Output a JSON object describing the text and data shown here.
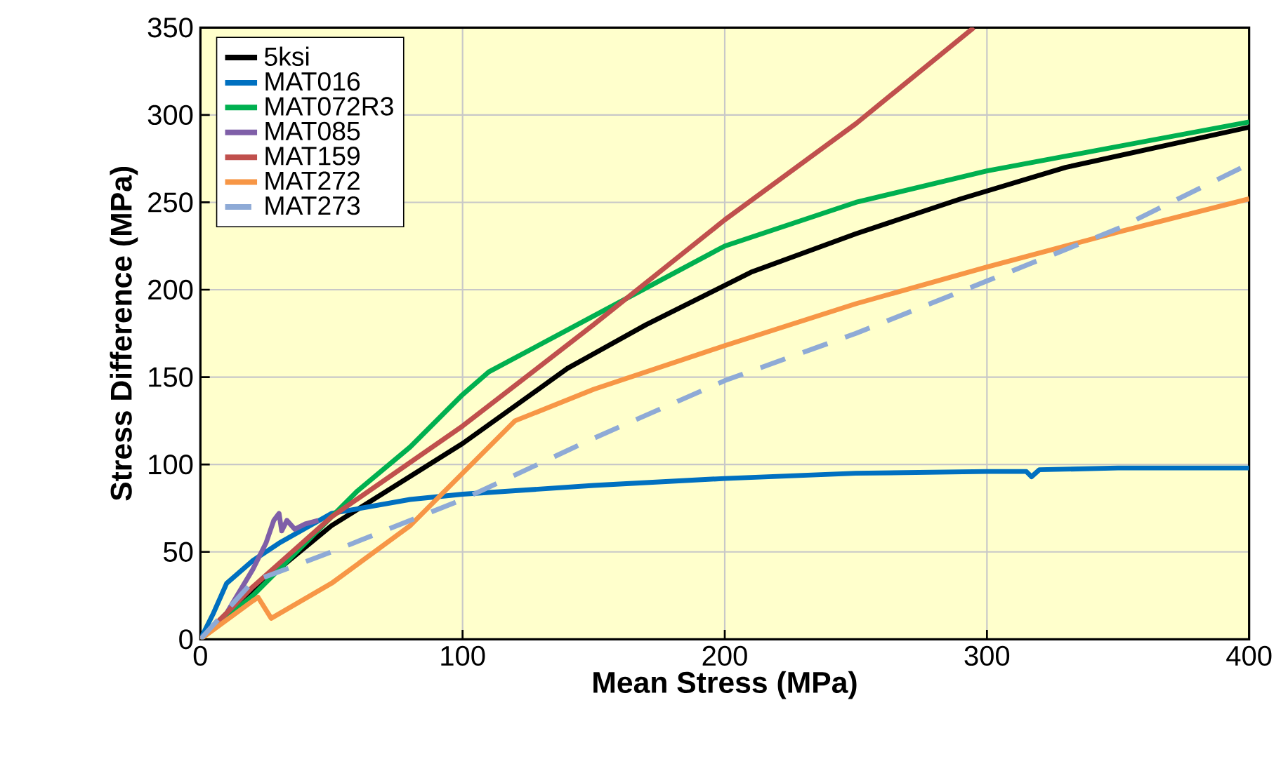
{
  "chart_data": {
    "type": "line",
    "xlabel": "Mean Stress (MPa)",
    "ylabel": "Stress Difference (MPa)",
    "xlim": [
      0,
      400
    ],
    "ylim": [
      0,
      350
    ],
    "xticks": [
      0,
      100,
      200,
      300,
      400
    ],
    "yticks": [
      0,
      50,
      100,
      150,
      200,
      250,
      300,
      350
    ],
    "grid": true,
    "legend": "top left",
    "line_style": "solid",
    "series": [
      {
        "name": "5ksi",
        "color": "#000000",
        "x": [
          0,
          20,
          50,
          100,
          140,
          170,
          210,
          250,
          290,
          330,
          400
        ],
        "values": [
          0,
          28,
          65,
          112,
          155,
          180,
          210,
          232,
          252,
          270,
          293
        ]
      },
      {
        "name": "MAT016",
        "color": "#0070c0",
        "x": [
          0,
          5,
          10,
          20,
          30,
          50,
          80,
          100,
          150,
          200,
          250,
          300,
          315,
          317,
          320,
          350,
          400
        ],
        "values": [
          0,
          15,
          32,
          45,
          55,
          72,
          80,
          83,
          88,
          92,
          95,
          96,
          96,
          93,
          97,
          98,
          98
        ]
      },
      {
        "name": "MAT072R3",
        "color": "#00b050",
        "x": [
          0,
          20,
          40,
          60,
          80,
          100,
          110,
          150,
          200,
          250,
          300,
          350,
          400
        ],
        "values": [
          0,
          25,
          55,
          85,
          110,
          140,
          153,
          185,
          225,
          250,
          268,
          282,
          296
        ]
      },
      {
        "name": "MAT085",
        "color": "#7f5fa8",
        "x": [
          0,
          10,
          20,
          25,
          28,
          30,
          31,
          33,
          36,
          40,
          45
        ],
        "values": [
          0,
          15,
          40,
          55,
          68,
          72,
          62,
          68,
          63,
          66,
          68
        ]
      },
      {
        "name": "MAT159",
        "color": "#c0504d",
        "x": [
          0,
          20,
          50,
          100,
          150,
          200,
          250,
          295
        ],
        "values": [
          0,
          30,
          70,
          122,
          180,
          240,
          295,
          350
        ]
      },
      {
        "name": "MAT272",
        "color": "#f79646",
        "x": [
          0,
          20,
          22,
          27,
          50,
          80,
          100,
          120,
          150,
          200,
          250,
          300,
          350,
          400
        ],
        "values": [
          0,
          22,
          24,
          12,
          32,
          65,
          95,
          125,
          143,
          168,
          192,
          213,
          233,
          252
        ]
      },
      {
        "name": "MAT273",
        "color": "#8eaad6",
        "line_style": "dashed",
        "x": [
          0,
          20,
          50,
          100,
          150,
          200,
          250,
          300,
          350,
          400
        ],
        "values": [
          0,
          33,
          50,
          80,
          115,
          148,
          175,
          205,
          235,
          272
        ]
      }
    ]
  }
}
